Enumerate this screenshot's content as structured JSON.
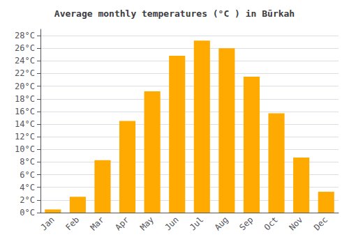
{
  "chart_data": {
    "type": "bar",
    "title": "Average monthly temperatures (°C ) in Būrkah",
    "categories": [
      "Jan",
      "Feb",
      "Mar",
      "Apr",
      "May",
      "Jun",
      "Jul",
      "Aug",
      "Sep",
      "Oct",
      "Nov",
      "Dec"
    ],
    "values": [
      0.5,
      2.5,
      8.3,
      14.5,
      19.2,
      24.8,
      27.2,
      26.0,
      21.5,
      15.7,
      8.7,
      3.3
    ],
    "color": "#FFAA00",
    "ylim": [
      0,
      29
    ],
    "yticks": [
      {
        "value": 0,
        "label": "0°C"
      },
      {
        "value": 2,
        "label": "2°C"
      },
      {
        "value": 4,
        "label": "4°C"
      },
      {
        "value": 6,
        "label": "6°C"
      },
      {
        "value": 8,
        "label": "8°C"
      },
      {
        "value": 10,
        "label": "10°C"
      },
      {
        "value": 12,
        "label": "12°C"
      },
      {
        "value": 14,
        "label": "14°C"
      },
      {
        "value": 16,
        "label": "16°C"
      },
      {
        "value": 18,
        "label": "18°C"
      },
      {
        "value": 20,
        "label": "20°C"
      },
      {
        "value": 22,
        "label": "22°C"
      },
      {
        "value": 24,
        "label": "24°C"
      },
      {
        "value": 26,
        "label": "26°C"
      },
      {
        "value": 28,
        "label": "28°C"
      }
    ],
    "grid": true
  }
}
